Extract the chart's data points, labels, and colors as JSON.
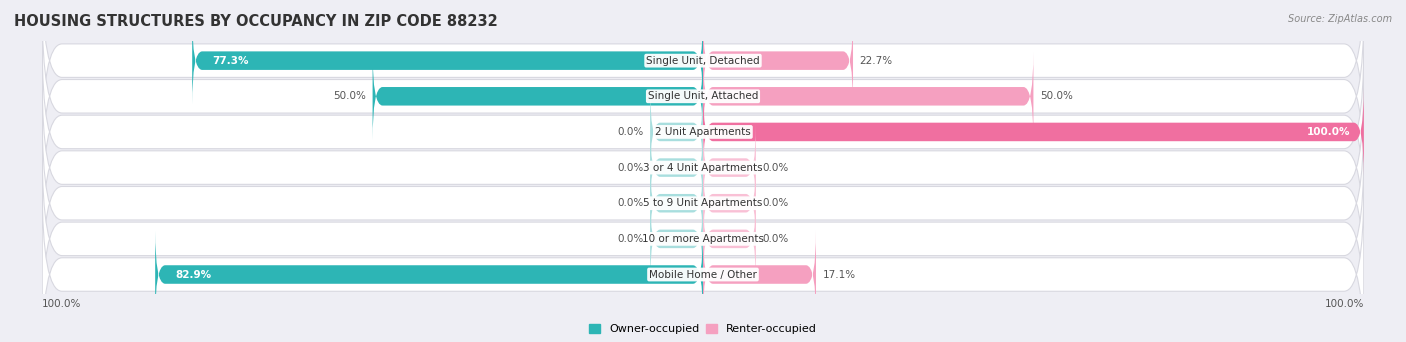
{
  "title": "HOUSING STRUCTURES BY OCCUPANCY IN ZIP CODE 88232",
  "source": "Source: ZipAtlas.com",
  "categories": [
    "Single Unit, Detached",
    "Single Unit, Attached",
    "2 Unit Apartments",
    "3 or 4 Unit Apartments",
    "5 to 9 Unit Apartments",
    "10 or more Apartments",
    "Mobile Home / Other"
  ],
  "owner_pct": [
    77.3,
    50.0,
    0.0,
    0.0,
    0.0,
    0.0,
    82.9
  ],
  "renter_pct": [
    22.7,
    50.0,
    100.0,
    0.0,
    0.0,
    0.0,
    17.1
  ],
  "owner_color": "#2db5b5",
  "renter_color": "#f06fa0",
  "renter_color_light": "#f5a0c0",
  "bg_color": "#eeeef4",
  "row_bg_color": "#ffffff",
  "title_fontsize": 10.5,
  "label_fontsize": 7.5,
  "pct_fontsize": 7.5,
  "axis_label_fontsize": 7.5,
  "legend_fontsize": 8,
  "bar_height": 0.52,
  "owner_label_positions": [
    {
      "inside": true,
      "color": "white"
    },
    {
      "inside": false,
      "color": "#444444"
    },
    {
      "inside": false,
      "color": "#444444"
    },
    {
      "inside": false,
      "color": "#444444"
    },
    {
      "inside": false,
      "color": "#444444"
    },
    {
      "inside": false,
      "color": "#444444"
    },
    {
      "inside": true,
      "color": "white"
    }
  ],
  "renter_label_positions": [
    {
      "inside": false,
      "color": "#444444"
    },
    {
      "inside": false,
      "color": "#444444"
    },
    {
      "inside": true,
      "color": "white"
    },
    {
      "inside": false,
      "color": "#444444"
    },
    {
      "inside": false,
      "color": "#444444"
    },
    {
      "inside": false,
      "color": "#444444"
    },
    {
      "inside": false,
      "color": "#444444"
    }
  ]
}
